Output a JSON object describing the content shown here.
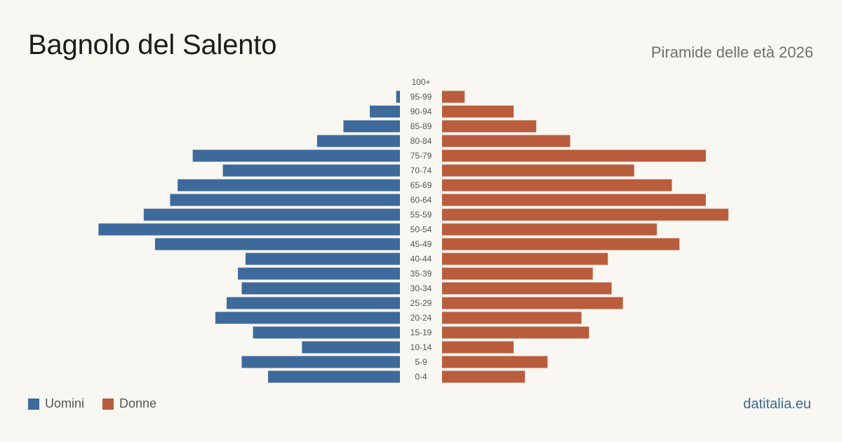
{
  "header": {
    "title": "Bagnolo del Salento",
    "subtitle": "Piramide delle età 2026"
  },
  "legend": {
    "men_label": "Uomini",
    "women_label": "Donne"
  },
  "footer": {
    "brand": "datitalia.eu"
  },
  "colors": {
    "men": "#3d6a9b",
    "women": "#b95d3d",
    "background": "#f9f7f2",
    "age_label": "#555555"
  },
  "chart_data": {
    "type": "bar",
    "orientation": "horizontal-population-pyramid",
    "categories": [
      "100+",
      "95-99",
      "90-94",
      "85-89",
      "80-84",
      "75-79",
      "70-74",
      "65-69",
      "60-64",
      "55-59",
      "50-54",
      "45-49",
      "40-44",
      "35-39",
      "30-34",
      "25-29",
      "20-24",
      "15-19",
      "10-14",
      "5-9",
      "0-4"
    ],
    "series": [
      {
        "name": "Uomini",
        "values": [
          0,
          1,
          8,
          15,
          22,
          55,
          47,
          59,
          61,
          68,
          80,
          65,
          41,
          43,
          42,
          46,
          49,
          39,
          26,
          42,
          35
        ]
      },
      {
        "name": "Donne",
        "values": [
          0,
          6,
          19,
          25,
          34,
          70,
          51,
          61,
          70,
          76,
          57,
          63,
          44,
          40,
          45,
          48,
          37,
          39,
          19,
          28,
          22
        ]
      }
    ],
    "legend_position": "bottom-left",
    "grid": false
  }
}
